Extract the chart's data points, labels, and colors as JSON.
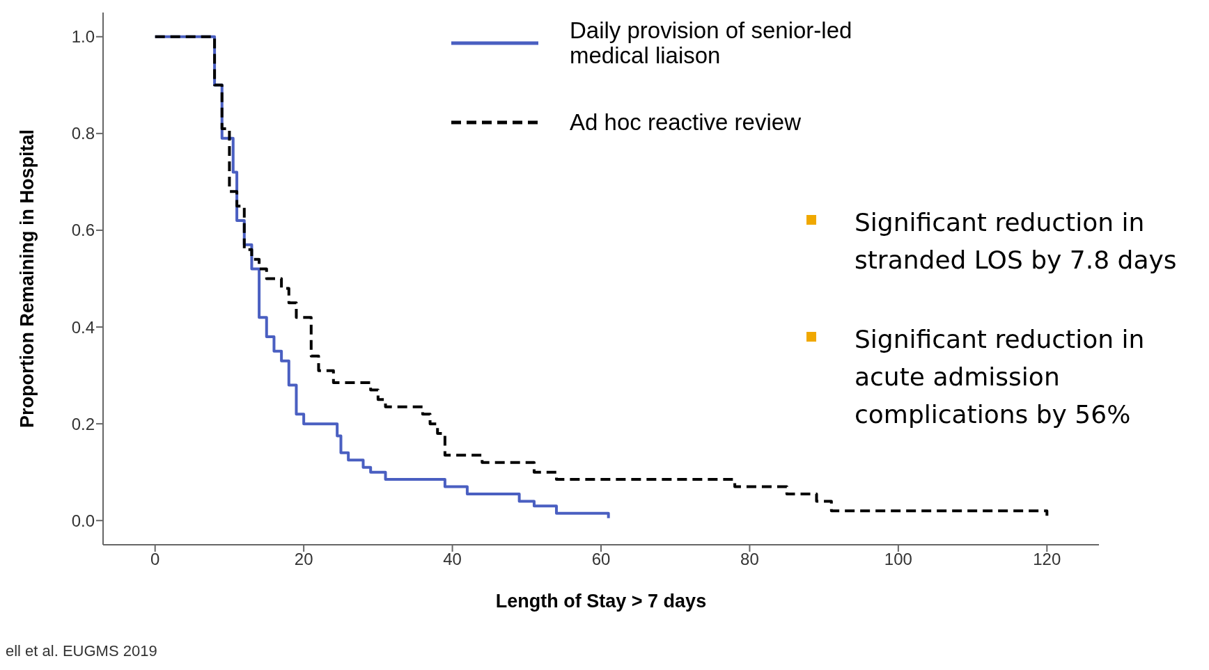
{
  "chart_data": {
    "type": "step",
    "xlabel": "Length of Stay > 7 days",
    "ylabel": "Proportion Remaining in Hospital",
    "xlim": [
      -7,
      127
    ],
    "xticks": [
      0,
      20,
      40,
      60,
      80,
      100,
      120
    ],
    "ylim": [
      -0.05,
      1.05
    ],
    "yticks": [
      {
        "value": 0,
        "label": "0.0"
      },
      {
        "value": 0.2,
        "label": "0.2"
      },
      {
        "value": 0.4,
        "label": "0.4"
      },
      {
        "value": 0.6,
        "label": "0.6"
      },
      {
        "value": 0.8,
        "label": "0.8"
      },
      {
        "value": 1,
        "label": "1.0"
      }
    ],
    "grid": false,
    "legend": "top",
    "marker": "none",
    "series": [
      {
        "name": "Daily provision of senior-led medical liaison",
        "color": "#4a5fc1",
        "line_style": "solid",
        "x": [
          0,
          8,
          9,
          10.5,
          11,
          12,
          13,
          14,
          15,
          16,
          17,
          18,
          19,
          20,
          24.5,
          25,
          26,
          28,
          29,
          31,
          39,
          42,
          49,
          51,
          54,
          61
        ],
        "values": [
          1,
          0.9,
          0.79,
          0.72,
          0.62,
          0.57,
          0.52,
          0.42,
          0.38,
          0.35,
          0.33,
          0.28,
          0.22,
          0.2,
          0.175,
          0.14,
          0.125,
          0.11,
          0.1,
          0.085,
          0.07,
          0.055,
          0.04,
          0.03,
          0.015,
          0.005
        ]
      },
      {
        "name": "Ad hoc reactive review",
        "color": "#000000",
        "line_style": "dashed",
        "x": [
          0,
          8,
          9,
          10,
          11,
          12,
          13,
          14,
          15,
          17,
          18,
          19,
          21,
          22,
          24,
          29,
          30,
          31,
          36,
          37,
          38,
          39,
          44,
          51,
          54,
          78,
          85,
          89,
          91,
          120
        ],
        "values": [
          1,
          0.9,
          0.81,
          0.68,
          0.65,
          0.56,
          0.54,
          0.52,
          0.5,
          0.48,
          0.45,
          0.42,
          0.34,
          0.31,
          0.285,
          0.27,
          0.25,
          0.235,
          0.22,
          0.2,
          0.18,
          0.135,
          0.12,
          0.1,
          0.085,
          0.07,
          0.055,
          0.04,
          0.02,
          0.01
        ]
      }
    ],
    "annotations": [
      "Significant reduction in stranded LOS by 7.8 days",
      "Significant reduction in acute admission complications by 56%",
      "ell et al. EUGMS 2019"
    ]
  }
}
